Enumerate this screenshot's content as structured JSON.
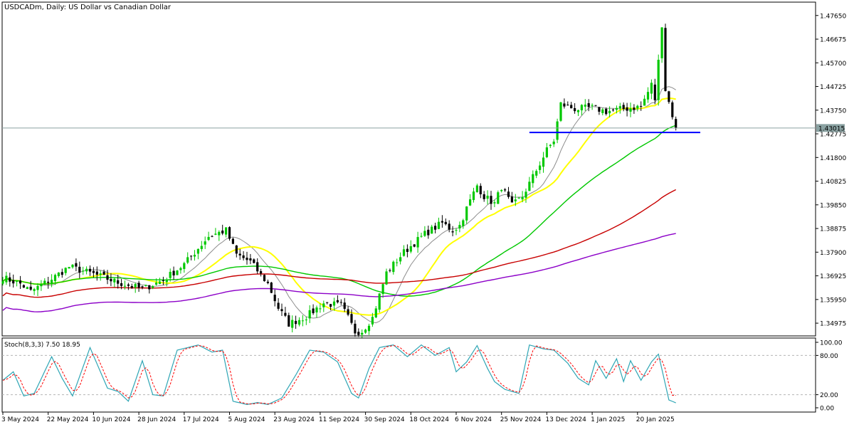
{
  "window": {
    "title": "USDCADm, Daily:  US Dollar vs Canadian Dollar"
  },
  "current_price": {
    "label": "1.43015",
    "value": 1.43015
  },
  "colors": {
    "background": "#ffffff",
    "bull_candle": "#00c800",
    "bear_candle": "#000000",
    "ma_fast": "#8c8c8c",
    "ma_yellow": "#ffff00",
    "ma_green": "#00c800",
    "ma_red": "#c80000",
    "ma_purple": "#8c00c8",
    "support_line": "#0000ff",
    "stoch_main": "#2fa6b5",
    "stoch_signal": "#ff0000"
  },
  "chart_data": {
    "type": "candlestick",
    "symbol": "USDCADm",
    "timeframe": "Daily",
    "ylim": [
      1.3445,
      1.482
    ],
    "price_ticks": [
      "1.47650",
      "1.46675",
      "1.45700",
      "1.44725",
      "1.43750",
      "1.42775",
      "1.41800",
      "1.40825",
      "1.39850",
      "1.38875",
      "1.37900",
      "1.36925",
      "1.35950",
      "1.34975"
    ],
    "price_tick_values": [
      1.4765,
      1.46675,
      1.457,
      1.44725,
      1.4375,
      1.42775,
      1.418,
      1.40825,
      1.3985,
      1.38875,
      1.379,
      1.36925,
      1.3595,
      1.34975
    ],
    "date_labels": [
      "3 May 2024",
      "22 May 2024",
      "10 Jun 2024",
      "28 Jun 2024",
      "17 Jul 2024",
      "5 Aug 2024",
      "23 Aug 2024",
      "11 Sep 2024",
      "30 Sep 2024",
      "18 Oct 2024",
      "6 Nov 2024",
      "25 Nov 2024",
      "13 Dec 2024",
      "1 Jan 2025",
      "20 Jan 2025"
    ],
    "date_label_bar_index": [
      0,
      13,
      26,
      39,
      52,
      65,
      78,
      91,
      104,
      117,
      130,
      143,
      156,
      169,
      182
    ],
    "close_keypoints": [
      [
        0,
        1.3685
      ],
      [
        5,
        1.366
      ],
      [
        8,
        1.3628
      ],
      [
        14,
        1.368
      ],
      [
        19,
        1.373
      ],
      [
        26,
        1.37
      ],
      [
        33,
        1.3665
      ],
      [
        40,
        1.3638
      ],
      [
        46,
        1.3675
      ],
      [
        52,
        1.374
      ],
      [
        59,
        1.3855
      ],
      [
        64,
        1.388
      ],
      [
        67,
        1.378
      ],
      [
        71,
        1.375
      ],
      [
        76,
        1.366
      ],
      [
        79,
        1.356
      ],
      [
        82,
        1.3495
      ],
      [
        87,
        1.3525
      ],
      [
        92,
        1.358
      ],
      [
        97,
        1.357
      ],
      [
        99,
        1.352
      ],
      [
        101,
        1.3462
      ],
      [
        103,
        1.3465
      ],
      [
        106,
        1.352
      ],
      [
        110,
        1.3705
      ],
      [
        115,
        1.379
      ],
      [
        121,
        1.3865
      ],
      [
        126,
        1.391
      ],
      [
        129,
        1.388
      ],
      [
        131,
        1.39
      ],
      [
        133,
        1.397
      ],
      [
        136,
        1.4065
      ],
      [
        138,
        1.402
      ],
      [
        141,
        1.399
      ],
      [
        143,
        1.406
      ],
      [
        146,
        1.398
      ],
      [
        149,
        1.402
      ],
      [
        152,
        1.41
      ],
      [
        156,
        1.421
      ],
      [
        158,
        1.425
      ],
      [
        160,
        1.44
      ],
      [
        164,
        1.438
      ],
      [
        169,
        1.4385
      ],
      [
        173,
        1.437
      ],
      [
        178,
        1.438
      ],
      [
        183,
        1.439
      ],
      [
        186,
        1.448
      ],
      [
        187,
        1.442
      ],
      [
        189,
        1.473
      ],
      [
        190,
        1.446
      ],
      [
        192,
        1.4355
      ],
      [
        193,
        1.43015
      ]
    ],
    "horizontal_levels": [
      {
        "price": 1.4283,
        "from_bar": 151,
        "to_bar": 200,
        "color": "#0000ff"
      }
    ],
    "moving_averages": [
      {
        "period": 10,
        "color": "#8c8c8c"
      },
      {
        "period": 20,
        "color": "#ffff00"
      },
      {
        "period": 50,
        "color": "#00c800"
      },
      {
        "period": 100,
        "color": "#c80000"
      },
      {
        "period": 200,
        "color": "#8c00c8"
      }
    ]
  },
  "stochastic": {
    "label": "Stoch(8,3,3) 7.50 18.95",
    "ticks": [
      "100.00",
      "80.00",
      "20.00",
      "0.00"
    ],
    "tick_values": [
      100,
      80,
      20,
      0
    ],
    "levels": [
      80,
      20
    ],
    "main_keypoints": [
      [
        0,
        42
      ],
      [
        3,
        55
      ],
      [
        6,
        18
      ],
      [
        9,
        22
      ],
      [
        14,
        78
      ],
      [
        17,
        45
      ],
      [
        20,
        18
      ],
      [
        25,
        92
      ],
      [
        30,
        30
      ],
      [
        33,
        25
      ],
      [
        36,
        10
      ],
      [
        40,
        72
      ],
      [
        43,
        20
      ],
      [
        46,
        18
      ],
      [
        50,
        88
      ],
      [
        56,
        96
      ],
      [
        60,
        85
      ],
      [
        63,
        88
      ],
      [
        66,
        10
      ],
      [
        70,
        5
      ],
      [
        73,
        8
      ],
      [
        76,
        5
      ],
      [
        80,
        15
      ],
      [
        84,
        50
      ],
      [
        88,
        88
      ],
      [
        92,
        85
      ],
      [
        96,
        70
      ],
      [
        100,
        22
      ],
      [
        102,
        15
      ],
      [
        105,
        60
      ],
      [
        108,
        92
      ],
      [
        112,
        96
      ],
      [
        116,
        78
      ],
      [
        120,
        96
      ],
      [
        124,
        80
      ],
      [
        128,
        92
      ],
      [
        130,
        55
      ],
      [
        133,
        70
      ],
      [
        136,
        95
      ],
      [
        139,
        60
      ],
      [
        141,
        40
      ],
      [
        144,
        28
      ],
      [
        148,
        22
      ],
      [
        151,
        96
      ],
      [
        155,
        90
      ],
      [
        158,
        88
      ],
      [
        162,
        68
      ],
      [
        165,
        45
      ],
      [
        168,
        35
      ],
      [
        170,
        72
      ],
      [
        173,
        45
      ],
      [
        176,
        75
      ],
      [
        178,
        40
      ],
      [
        180,
        72
      ],
      [
        183,
        42
      ],
      [
        186,
        70
      ],
      [
        188,
        82
      ],
      [
        191,
        12
      ],
      [
        193,
        7.5
      ]
    ],
    "current_main": 7.5,
    "current_signal": 18.95
  }
}
